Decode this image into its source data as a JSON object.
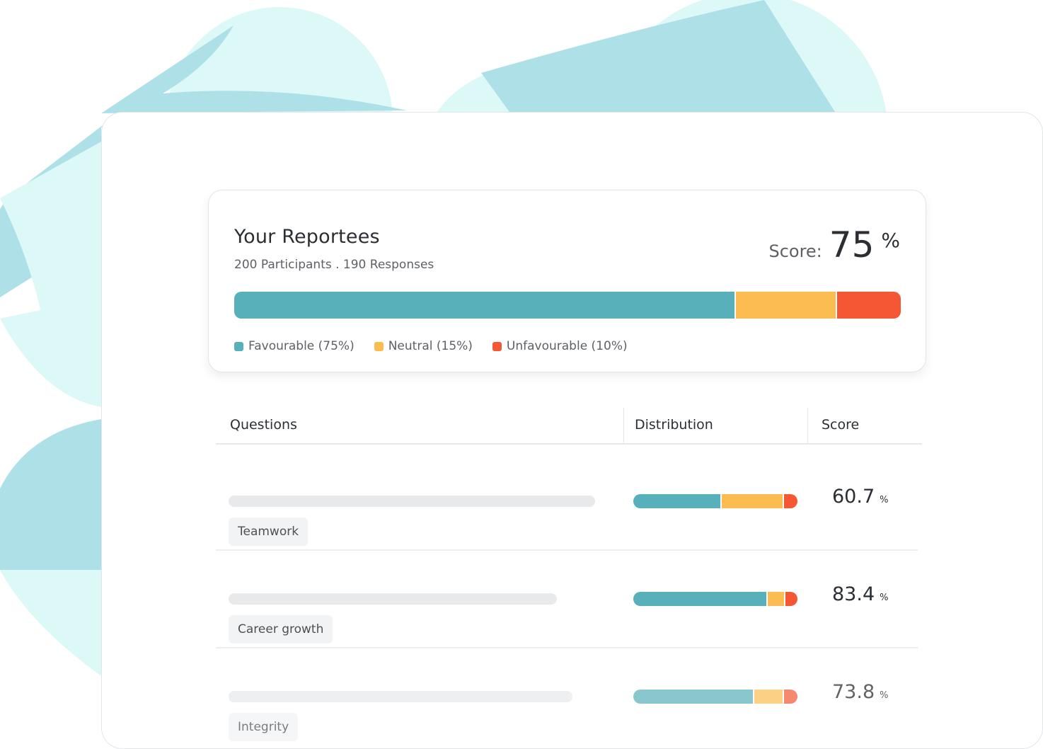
{
  "summary": {
    "title": "Your Reportees",
    "subtitle": "200 Participants . 190 Responses",
    "score_label": "Score:",
    "score_value": "75",
    "score_unit": "%",
    "distribution": {
      "favourable": 0.75,
      "neutral": 0.15,
      "unfavourable": 0.1
    },
    "legend": [
      {
        "label": "Favourable (75%)",
        "color": "#57b0ba"
      },
      {
        "label": "Neutral (15%)",
        "color": "#fbbd52"
      },
      {
        "label": "Unfavourable (10%)",
        "color": "#f55735"
      }
    ]
  },
  "table": {
    "headers": {
      "questions": "Questions",
      "distribution": "Distribution",
      "score": "Score"
    },
    "rows": [
      {
        "tag": "Teamwork",
        "score": "60.7",
        "unit": "%",
        "distribution": {
          "favourable": 0.53,
          "neutral": 0.37,
          "unfavourable": 0.1
        }
      },
      {
        "tag": "Career growth",
        "score": "83.4",
        "unit": "%",
        "distribution": {
          "favourable": 0.81,
          "neutral": 0.1,
          "unfavourable": 0.09
        }
      },
      {
        "tag": "Integrity",
        "score": "73.8",
        "unit": "%",
        "distribution": {
          "favourable": 0.73,
          "neutral": 0.17,
          "unfavourable": 0.1
        }
      }
    ]
  },
  "colors": {
    "favourable": "#57b0ba",
    "neutral": "#fbbd52",
    "unfavourable": "#f55735",
    "background_light": "#dcf8f7",
    "background_mid": "#aee0e8"
  }
}
